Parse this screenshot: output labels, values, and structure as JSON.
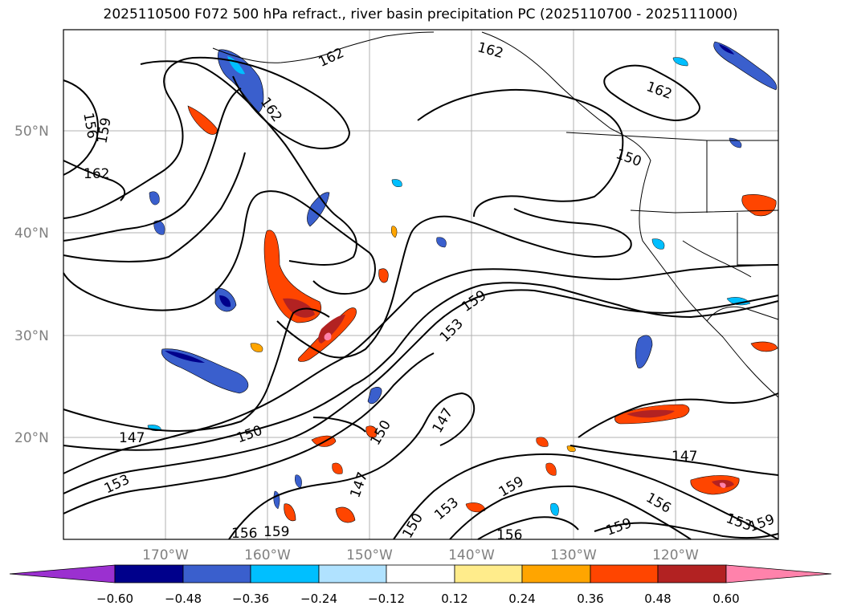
{
  "title": "2025110500 F072 500 hPa refract., river basin precipitation PC (2025110700 - 2025111000)",
  "map": {
    "lat_labels": [
      "50°N",
      "40°N",
      "30°N",
      "20°N"
    ],
    "lon_labels": [
      "170°W",
      "160°W",
      "150°W",
      "140°W",
      "130°W",
      "120°W"
    ]
  },
  "contour_labels": [
    "156",
    "159",
    "162",
    "162",
    "162",
    "162",
    "162",
    "159",
    "150",
    "159",
    "153",
    "147",
    "150",
    "150",
    "147",
    "153",
    "147",
    "150",
    "153",
    "156",
    "159",
    "159",
    "156",
    "159",
    "147",
    "156",
    "153",
    "159"
  ],
  "colorbar": {
    "ticks": [
      "−0.60",
      "−0.48",
      "−0.36",
      "−0.24",
      "−0.12",
      "0.12",
      "0.24",
      "0.36",
      "0.48",
      "0.60"
    ],
    "colors": [
      "#9b30d0",
      "#00008b",
      "#3a5fcd",
      "#00bfff",
      "#b0e2ff",
      "#ffffff",
      "#ffec8b",
      "#ffa500",
      "#ff4500",
      "#b22222",
      "#ff82ab"
    ]
  }
}
